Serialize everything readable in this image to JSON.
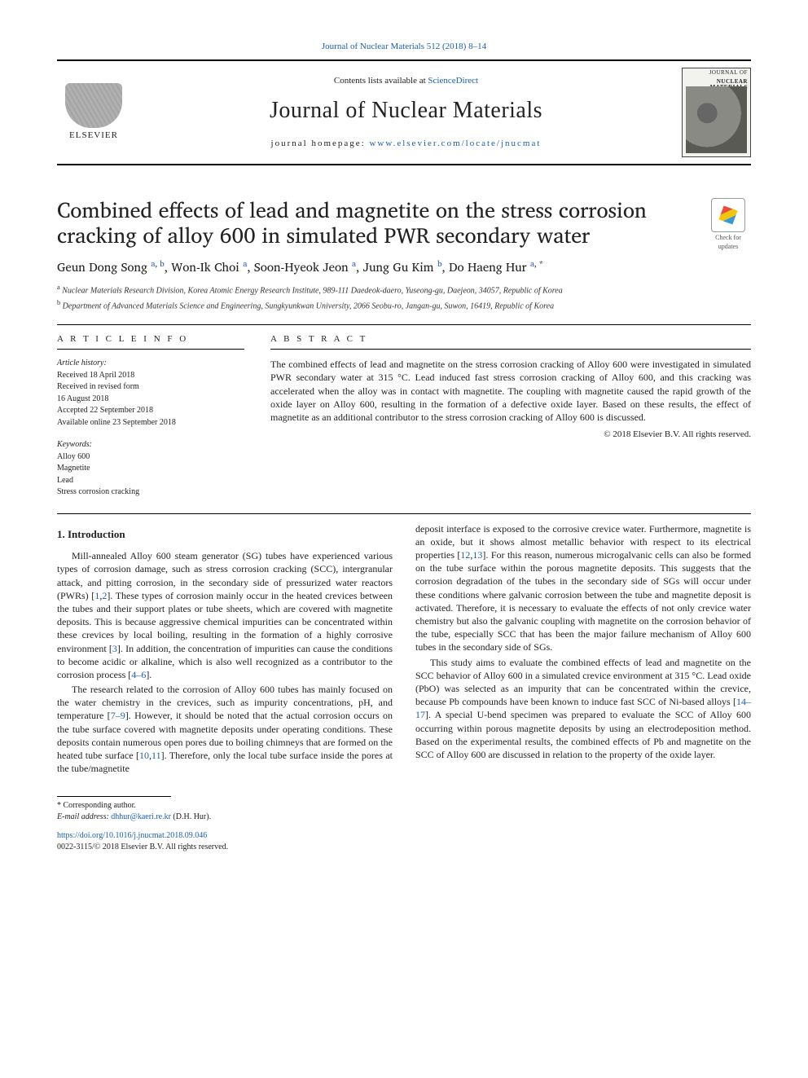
{
  "top_link": {
    "text": "Journal of Nuclear Materials 512 (2018) 8–14",
    "href": "#"
  },
  "masthead": {
    "contents_prefix": "Contents lists available at ",
    "contents_link": "ScienceDirect",
    "journal_title": "Journal of Nuclear Materials",
    "homepage_prefix": "journal homepage: ",
    "homepage_link": "www.elsevier.com/locate/jnucmat",
    "publisher_logo_text": "ELSEVIER",
    "cover_label_line1": "JOURNAL OF",
    "cover_label_line2": "NUCLEAR MATERIALS"
  },
  "crossmark": {
    "line1": "Check for",
    "line2": "updates"
  },
  "paper": {
    "title": "Combined effects of lead and magnetite on the stress corrosion cracking of alloy 600 in simulated PWR secondary water",
    "authors_html": "Geun Dong Song <sup><a href='#'>a</a>, <a href='#'>b</a></sup>, Won-Ik Choi <sup><a href='#'>a</a></sup>, Soon-Hyeok Jeon <sup><a href='#'>a</a></sup>, Jung Gu Kim <sup><a href='#'>b</a></sup>, Do Haeng Hur <sup><a href='#'>a</a>, *</sup>",
    "affiliations": [
      {
        "sup": "a",
        "text": "Nuclear Materials Research Division, Korea Atomic Energy Research Institute, 989-111 Daedeok-daero, Yuseong-gu, Daejeon, 34057, Republic of Korea"
      },
      {
        "sup": "b",
        "text": "Department of Advanced Materials Science and Engineering, Sungkyunkwan University, 2066 Seobu-ro, Jangan-gu, Suwon, 16419, Republic of Korea"
      }
    ]
  },
  "article_info": {
    "heading": "A R T I C L E   I N F O",
    "history_label": "Article history:",
    "history": [
      "Received 18 April 2018",
      "Received in revised form",
      "16 August 2018",
      "Accepted 22 September 2018",
      "Available online 23 September 2018"
    ],
    "keywords_label": "Keywords:",
    "keywords": [
      "Alloy 600",
      "Magnetite",
      "Lead",
      "Stress corrosion cracking"
    ]
  },
  "abstract": {
    "heading": "A B S T R A C T",
    "text": "The combined effects of lead and magnetite on the stress corrosion cracking of Alloy 600 were investigated in simulated PWR secondary water at 315 °C. Lead induced fast stress corrosion cracking of Alloy 600, and this cracking was accelerated when the alloy was in contact with magnetite. The coupling with magnetite caused the rapid growth of the oxide layer on Alloy 600, resulting in the formation of a defective oxide layer. Based on these results, the effect of magnetite as an additional contributor to the stress corrosion cracking of Alloy 600 is discussed.",
    "copyright": "© 2018 Elsevier B.V. All rights reserved."
  },
  "body": {
    "section1_heading": "1.  Introduction",
    "p1": "Mill-annealed Alloy 600 steam generator (SG) tubes have experienced various types of corrosion damage, such as stress corrosion cracking (SCC), intergranular attack, and pitting corrosion, in the secondary side of pressurized water reactors (PWRs) [1,2]. These types of corrosion mainly occur in the heated crevices between the tubes and their support plates or tube sheets, which are covered with magnetite deposits. This is because aggressive chemical impurities can be concentrated within these crevices by local boiling, resulting in the formation of a highly corrosive environment [3]. In addition, the concentration of impurities can cause the conditions to become acidic or alkaline, which is also well recognized as a contributor to the corrosion process [4–6].",
    "p2": "The research related to the corrosion of Alloy 600 tubes has mainly focused on the water chemistry in the crevices, such as impurity concentrations, pH, and temperature [7–9]. However, it should be noted that the actual corrosion occurs on the tube surface covered with magnetite deposits under operating conditions. These deposits contain numerous open pores due to boiling chimneys that are formed on the heated tube surface [10,11]. Therefore, only the local tube surface inside the pores at the tube/magnetite",
    "p3": "deposit interface is exposed to the corrosive crevice water. Furthermore, magnetite is an oxide, but it shows almost metallic behavior with respect to its electrical properties [12,13]. For this reason, numerous microgalvanic cells can also be formed on the tube surface within the porous magnetite deposits. This suggests that the corrosion degradation of the tubes in the secondary side of SGs will occur under these conditions where galvanic corrosion between the tube and magnetite deposit is activated. Therefore, it is necessary to evaluate the effects of not only crevice water chemistry but also the galvanic coupling with magnetite on the corrosion behavior of the tube, especially SCC that has been the major failure mechanism of Alloy 600 tubes in the secondary side of SGs.",
    "p4": "This study aims to evaluate the combined effects of lead and magnetite on the SCC behavior of Alloy 600 in a simulated crevice environment at 315 °C. Lead oxide (PbO) was selected as an impurity that can be concentrated within the crevice, because Pb compounds have been known to induce fast SCC of Ni-based alloys [14–17]. A special U-bend specimen was prepared to evaluate the SCC of Alloy 600 occurring within porous magnetite deposits by using an electrodeposition method. Based on the experimental results, the combined effects of Pb and magnetite on the SCC of Alloy 600 are discussed in relation to the property of the oxide layer.",
    "refs": {
      "r12": "1",
      "r2": "2",
      "r3": "3",
      "r46": "4–6",
      "r79": "7–9",
      "r1011": "10,11",
      "r1213": "12,13",
      "r1417": "14–17"
    }
  },
  "footer": {
    "corr": "* Corresponding author.",
    "email_label": "E-mail address: ",
    "email": "dhhur@kaeri.re.kr",
    "email_suffix": " (D.H. Hur).",
    "doi_link": "https://doi.org/10.1016/j.jnucmat.2018.09.046",
    "issn": "0022-3115/© 2018 Elsevier B.V. All rights reserved."
  },
  "colors": {
    "link": "#1a5fb4",
    "text": "#222222",
    "rule": "#000000"
  }
}
